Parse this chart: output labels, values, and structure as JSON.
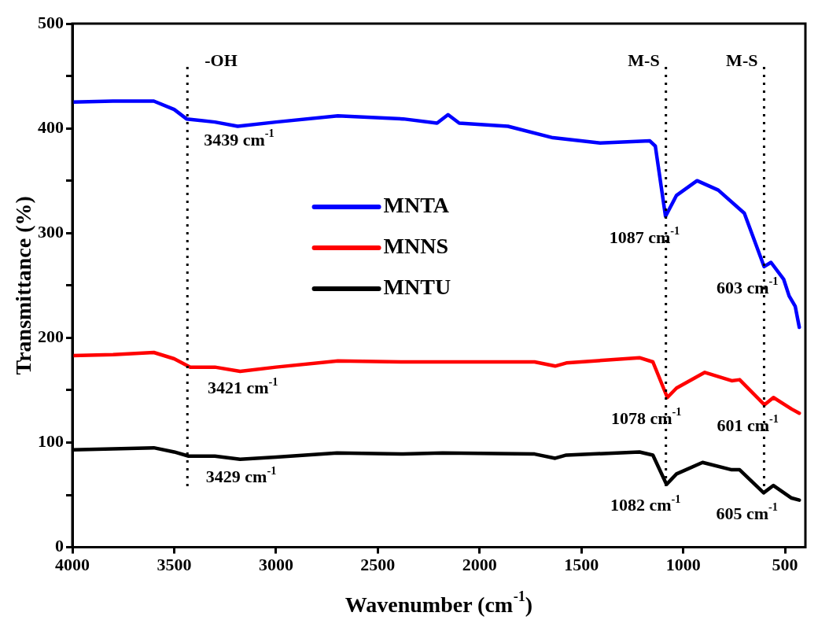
{
  "chart_data": {
    "type": "line",
    "xlabel": "Wavenumber (cm$^{-1}$)",
    "ylabel": "Transmittance (%)",
    "xlim": [
      4000,
      400
    ],
    "xticks": [
      4000,
      3500,
      3000,
      2500,
      2000,
      1500,
      1000,
      500
    ],
    "ylim": [
      0,
      500
    ],
    "yticks": [
      0,
      {
        "value": 50,
        "label": null
      },
      100,
      {
        "value": 150,
        "label": null
      },
      200,
      {
        "value": 250,
        "label": null
      },
      300,
      {
        "value": 350,
        "label": null
      },
      400,
      {
        "value": 450,
        "label": null
      },
      500
    ],
    "grid": false,
    "legend": "center",
    "marker": "none",
    "line_style": "solid",
    "series": [
      {
        "name": "MNTA",
        "color": "#0000ff",
        "x": [
          4000,
          3800,
          3600,
          3500,
          3439,
          3300,
          3188,
          3000,
          2696,
          2375,
          2209,
          2155,
          2100,
          1861,
          1640,
          1408,
          1164,
          1137,
          1087,
          1033,
          932,
          828,
          700,
          603,
          569,
          507,
          480,
          450,
          430
        ],
        "values": [
          425,
          426,
          426,
          418,
          409,
          406,
          402,
          406,
          412,
          409,
          405,
          413,
          405,
          402,
          391,
          386,
          388,
          383,
          316,
          336,
          350,
          341,
          319,
          268,
          272,
          256,
          240,
          230,
          210
        ]
      },
      {
        "name": "MNNS",
        "color": "#ff0000",
        "x": [
          4000,
          3800,
          3600,
          3500,
          3421,
          3300,
          3176,
          3000,
          2696,
          2375,
          2182,
          1730,
          1629,
          1574,
          1215,
          1149,
          1078,
          1033,
          894,
          762,
          723,
          601,
          557,
          468,
          430
        ],
        "values": [
          183,
          184,
          186,
          180,
          172,
          172,
          168,
          172,
          178,
          177,
          177,
          177,
          173,
          176,
          181,
          177,
          143,
          152,
          167,
          159,
          160,
          136,
          143,
          132,
          128
        ]
      },
      {
        "name": "MNTU",
        "color": "#000000",
        "x": [
          4000,
          3800,
          3600,
          3500,
          3429,
          3300,
          3176,
          3000,
          2700,
          2375,
          2182,
          1730,
          1629,
          1574,
          1215,
          1149,
          1082,
          1033,
          905,
          762,
          723,
          605,
          557,
          468,
          430
        ],
        "values": [
          93,
          94,
          95,
          91,
          87,
          87,
          84,
          86,
          90,
          89,
          90,
          89,
          85,
          88,
          91,
          88,
          60,
          70,
          81,
          74,
          74,
          52,
          59,
          47,
          45
        ]
      }
    ],
    "ref_lines": [
      {
        "axis": "x",
        "value": 3435,
        "line_style": "dotted",
        "color": "#000000",
        "label": "-OH"
      },
      {
        "axis": "x",
        "value": 1085,
        "line_style": "dotted",
        "color": "#000000",
        "label": "M-S"
      },
      {
        "axis": "x",
        "value": 603,
        "line_style": "dotted",
        "color": "#000000",
        "label": "M-S"
      }
    ],
    "annotations": [
      {
        "text": "3439 cm$^{-1}$",
        "x": 3439,
        "y": 409
      },
      {
        "text": "1087 cm$^{-1}$",
        "x": 1087,
        "y": 316
      },
      {
        "text": "603 cm$^{-1}$",
        "x": 603,
        "y": 268
      },
      {
        "text": "3421 cm$^{-1}$",
        "x": 3421,
        "y": 172
      },
      {
        "text": "1078 cm$^{-1}$",
        "x": 1078,
        "y": 143
      },
      {
        "text": "601 cm$^{-1}$",
        "x": 601,
        "y": 136
      },
      {
        "text": "3429 cm$^{-1}$",
        "x": 3429,
        "y": 87
      },
      {
        "text": "1082 cm$^{-1}$",
        "x": 1082,
        "y": 60
      },
      {
        "text": "605 cm$^{-1}$",
        "x": 605,
        "y": 52
      }
    ]
  }
}
